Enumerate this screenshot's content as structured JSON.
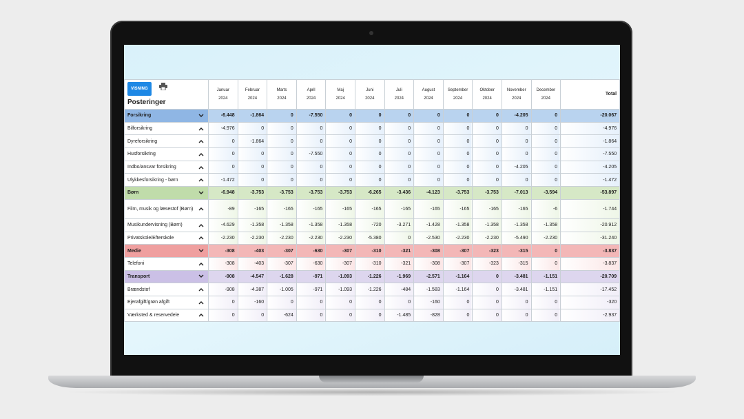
{
  "header": {
    "button": "VISNING",
    "title": "Posteringer"
  },
  "table": {
    "months": [
      {
        "month": "Januar",
        "year": "2024"
      },
      {
        "month": "Februar",
        "year": "2024"
      },
      {
        "month": "Marts",
        "year": "2024"
      },
      {
        "month": "April",
        "year": "2024"
      },
      {
        "month": "Maj",
        "year": "2024"
      },
      {
        "month": "Juni",
        "year": "2024"
      },
      {
        "month": "Juli",
        "year": "2024"
      },
      {
        "month": "August",
        "year": "2024"
      },
      {
        "month": "September",
        "year": "2024"
      },
      {
        "month": "Oktober",
        "year": "2024"
      },
      {
        "month": "November",
        "year": "2024"
      },
      {
        "month": "December",
        "year": "2024"
      }
    ],
    "total_label": "Total",
    "groups": [
      {
        "label": "Forsikring",
        "values": [
          "-6.448",
          "-1.864",
          "0",
          "-7.550",
          "0",
          "0",
          "0",
          "0",
          "0",
          "0",
          "-4.205",
          "0"
        ],
        "total": "-20.067",
        "rows": [
          {
            "label": "Bilforsikring",
            "values": [
              "-4.976",
              "0",
              "0",
              "0",
              "0",
              "0",
              "0",
              "0",
              "0",
              "0",
              "0",
              "0"
            ],
            "total": "-4.976"
          },
          {
            "label": "Dyreforsikring",
            "values": [
              "0",
              "-1.864",
              "0",
              "0",
              "0",
              "0",
              "0",
              "0",
              "0",
              "0",
              "0",
              "0"
            ],
            "total": "-1.864"
          },
          {
            "label": "Husforsikring",
            "values": [
              "0",
              "0",
              "0",
              "-7.550",
              "0",
              "0",
              "0",
              "0",
              "0",
              "0",
              "0",
              "0"
            ],
            "total": "-7.550"
          },
          {
            "label": "Indbo/ansvar forsikring",
            "values": [
              "0",
              "0",
              "0",
              "0",
              "0",
              "0",
              "0",
              "0",
              "0",
              "0",
              "-4.205",
              "0"
            ],
            "total": "-4.205"
          },
          {
            "label": "Ulykkesforsikring - børn",
            "values": [
              "-1.472",
              "0",
              "0",
              "0",
              "0",
              "0",
              "0",
              "0",
              "0",
              "0",
              "0",
              "0"
            ],
            "total": "-1.472"
          }
        ]
      },
      {
        "label": "Børn",
        "values": [
          "-6.948",
          "-3.753",
          "-3.753",
          "-3.753",
          "-3.753",
          "-6.265",
          "-3.436",
          "-4.123",
          "-3.753",
          "-3.753",
          "-7.013",
          "-3.594"
        ],
        "total": "-53.897",
        "rows": [
          {
            "label": "Film, musik og læsestof (Børn)",
            "values": [
              "-89",
              "-165",
              "-165",
              "-165",
              "-165",
              "-165",
              "-165",
              "-165",
              "-165",
              "-165",
              "-165",
              "-6"
            ],
            "total": "-1.744"
          },
          {
            "label": "Musikundervisning (Børn)",
            "values": [
              "-4.629",
              "-1.358",
              "-1.358",
              "-1.358",
              "-1.358",
              "-720",
              "-3.271",
              "-1.428",
              "-1.358",
              "-1.358",
              "-1.358",
              "-1.358"
            ],
            "total": "-20.912"
          },
          {
            "label": "Privatskole/Efterskole",
            "values": [
              "-2.230",
              "-2.230",
              "-2.230",
              "-2.230",
              "-2.230",
              "-5.380",
              "0",
              "-2.530",
              "-2.230",
              "-2.230",
              "-5.490",
              "-2.230"
            ],
            "total": "-31.240"
          }
        ]
      },
      {
        "label": "Medie",
        "values": [
          "-308",
          "-403",
          "-307",
          "-630",
          "-307",
          "-310",
          "-321",
          "-308",
          "-307",
          "-323",
          "-315",
          "0"
        ],
        "total": "-3.837",
        "rows": [
          {
            "label": "Telefoni",
            "values": [
              "-308",
              "-403",
              "-307",
              "-630",
              "-307",
              "-310",
              "-321",
              "-308",
              "-307",
              "-323",
              "-315",
              "0"
            ],
            "total": "-3.837"
          }
        ]
      },
      {
        "label": "Transport",
        "values": [
          "-908",
          "-4.547",
          "-1.628",
          "-971",
          "-1.093",
          "-1.226",
          "-1.969",
          "-2.571",
          "-1.164",
          "0",
          "-3.481",
          "-1.151"
        ],
        "total": "-20.709",
        "rows": [
          {
            "label": "Brændstof",
            "values": [
              "-908",
              "-4.387",
              "-1.005",
              "-971",
              "-1.093",
              "-1.226",
              "-484",
              "-1.583",
              "-1.164",
              "0",
              "-3.481",
              "-1.151"
            ],
            "total": "-17.452"
          },
          {
            "label": "Ejerafgift/grøn afgift",
            "values": [
              "0",
              "-160",
              "0",
              "0",
              "0",
              "0",
              "0",
              "-160",
              "0",
              "0",
              "0",
              "0"
            ],
            "total": "-320"
          },
          {
            "label": "Værksted & reservedele",
            "values": [
              "0",
              "0",
              "-624",
              "0",
              "0",
              "0",
              "-1.485",
              "-828",
              "0",
              "0",
              "0",
              "0"
            ],
            "total": "-2.937"
          }
        ]
      }
    ]
  }
}
